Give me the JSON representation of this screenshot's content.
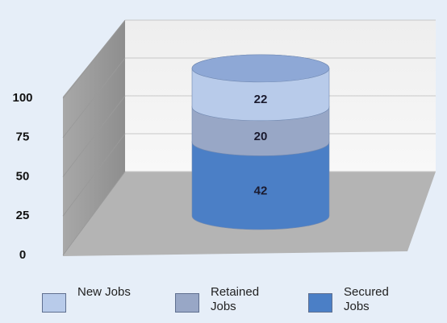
{
  "chart_data": {
    "type": "bar",
    "stacked": true,
    "categories": [
      null
    ],
    "series": [
      {
        "name": "New Jobs",
        "color": "#b8cbea",
        "values": [
          22
        ]
      },
      {
        "name": "Retained Jobs",
        "color": "#98a7c6",
        "values": [
          20
        ]
      },
      {
        "name": "Secured Jobs",
        "color": "#4b7fc6",
        "values": [
          42
        ]
      }
    ],
    "ylim": [
      0,
      100
    ],
    "yticks": [
      0,
      25,
      50,
      75,
      100
    ],
    "grid": true,
    "legend": "bottom"
  }
}
